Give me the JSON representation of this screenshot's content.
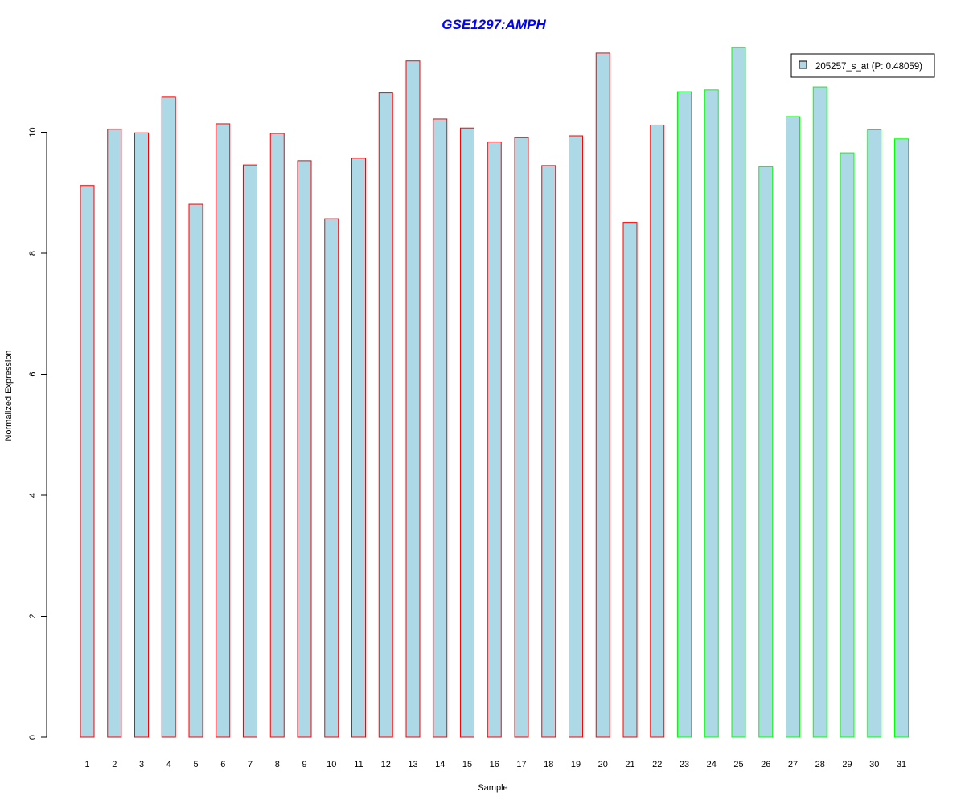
{
  "colors": {
    "bar_fill": "#add8e6",
    "group1_border": "#ff0000",
    "group2_border": "#00ff00",
    "title": "#0000ff",
    "axis": "#000000"
  },
  "chart_data": {
    "type": "bar",
    "title": "GSE1297:AMPH",
    "xlabel": "Sample",
    "ylabel": "Normalized Expression",
    "ylim": [
      0,
      11.5
    ],
    "y_ticks": [
      "0",
      "2",
      "4",
      "6",
      "8",
      "10"
    ],
    "categories": [
      "1",
      "2",
      "3",
      "4",
      "5",
      "6",
      "7",
      "8",
      "9",
      "10",
      "11",
      "12",
      "13",
      "14",
      "15",
      "16",
      "17",
      "18",
      "19",
      "20",
      "21",
      "22",
      "23",
      "24",
      "25",
      "26",
      "27",
      "28",
      "29",
      "30",
      "31"
    ],
    "values": [
      9.12,
      10.05,
      9.99,
      10.58,
      8.81,
      10.14,
      9.46,
      9.98,
      9.53,
      8.57,
      9.57,
      10.65,
      11.18,
      10.22,
      10.07,
      9.84,
      9.91,
      9.45,
      9.94,
      11.31,
      8.51,
      10.12,
      10.67,
      10.7,
      11.4,
      9.43,
      10.26,
      10.75,
      9.66,
      10.04,
      9.89
    ],
    "groups": [
      1,
      1,
      1,
      1,
      1,
      1,
      1,
      1,
      1,
      1,
      1,
      1,
      1,
      1,
      1,
      1,
      1,
      1,
      1,
      1,
      1,
      1,
      2,
      2,
      2,
      2,
      2,
      2,
      2,
      2,
      2
    ],
    "grid": false,
    "legend": {
      "position": "top-right",
      "entries": [
        "205257_s_at (P: 0.48059)"
      ]
    }
  }
}
